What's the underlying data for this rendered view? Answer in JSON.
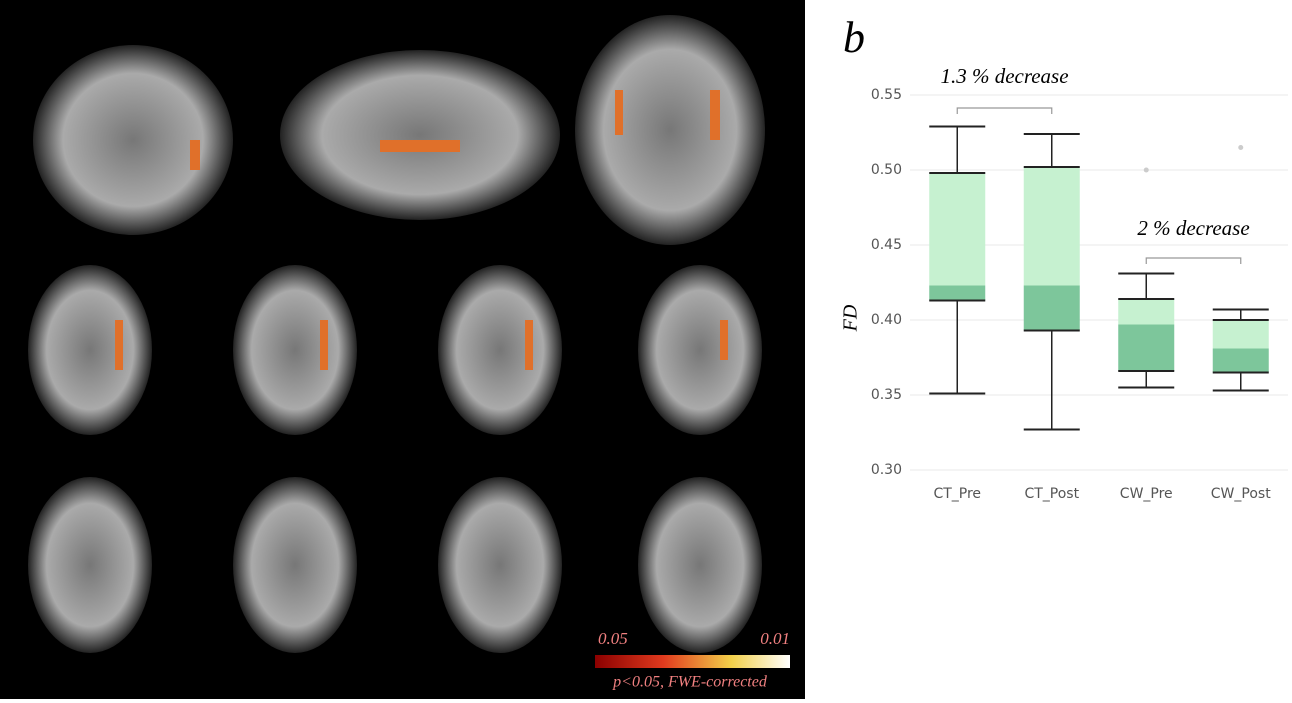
{
  "brain_panel": {
    "colorbar_labels": [
      "0.05",
      "0.01"
    ],
    "caption": "p<0.05, FWE-corrected"
  },
  "chart_data": {
    "type": "box",
    "panel_label": "b",
    "y_label": "FD",
    "categories": [
      "CT_Pre",
      "CT_Post",
      "CW_Pre",
      "CW_Post"
    ],
    "boxes": [
      {
        "whisker_low": 0.351,
        "q1": 0.413,
        "median": 0.423,
        "q3": 0.498,
        "whisker_high": 0.529,
        "outliers": []
      },
      {
        "whisker_low": 0.327,
        "q1": 0.393,
        "median": 0.423,
        "q3": 0.502,
        "whisker_high": 0.524,
        "outliers": []
      },
      {
        "whisker_low": 0.355,
        "q1": 0.366,
        "median": 0.397,
        "q3": 0.414,
        "whisker_high": 0.431,
        "outliers": [
          0.5
        ]
      },
      {
        "whisker_low": 0.353,
        "q1": 0.365,
        "median": 0.381,
        "q3": 0.4,
        "whisker_high": 0.407,
        "outliers": [
          0.515
        ]
      }
    ],
    "upper_color": "#c6f1d0",
    "lower_color": "#7dc69b",
    "outlier_color": "#cccccc",
    "ylim": [
      0.3,
      0.55
    ],
    "yticks": [
      {
        "value": 0.3,
        "label": "0.30"
      },
      0.35,
      {
        "value": 0.4,
        "label": "0.40"
      },
      0.45,
      {
        "value": 0.5,
        "label": "0.50"
      },
      0.55
    ],
    "grid": true,
    "annotations": [
      "1.3 % decrease",
      "2 % decrease"
    ]
  }
}
